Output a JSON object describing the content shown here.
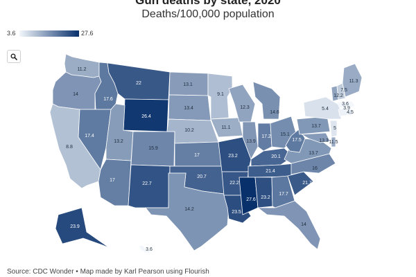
{
  "header": {
    "title": "Gun deaths by state, 2020",
    "subtitle": "Deaths/100,000 population"
  },
  "legend": {
    "min": "3.6",
    "max": "27.6",
    "color_low": "#f3f7fc",
    "color_high": "#08306b"
  },
  "controls": {
    "search_icon": "search-icon"
  },
  "footer": {
    "source": "Source: CDC Wonder • Map made by Karl Pearson using Flourish"
  },
  "chart_data": {
    "type": "map",
    "value_range": [
      3.6,
      27.6
    ],
    "states": [
      {
        "code": "WA",
        "value": 11.2
      },
      {
        "code": "OR",
        "value": 14
      },
      {
        "code": "CA",
        "value": 8.8
      },
      {
        "code": "ID",
        "value": 17.6
      },
      {
        "code": "NV",
        "value": 17.4
      },
      {
        "code": "MT",
        "value": 22
      },
      {
        "code": "WY",
        "value": 26.4
      },
      {
        "code": "UT",
        "value": 13.2
      },
      {
        "code": "AZ",
        "value": 17
      },
      {
        "code": "CO",
        "value": 15.9
      },
      {
        "code": "NM",
        "value": 22.7
      },
      {
        "code": "ND",
        "value": 13.1
      },
      {
        "code": "SD",
        "value": 13.4
      },
      {
        "code": "NE",
        "value": 10.2
      },
      {
        "code": "KS",
        "value": 17
      },
      {
        "code": "OK",
        "value": 20.7
      },
      {
        "code": "TX",
        "value": 14.2
      },
      {
        "code": "MN",
        "value": 9.1
      },
      {
        "code": "IA",
        "value": 11.1
      },
      {
        "code": "MO",
        "value": 23.2
      },
      {
        "code": "AR",
        "value": 22.2
      },
      {
        "code": "LA",
        "value": 23.5
      },
      {
        "code": "WI",
        "value": 12.3
      },
      {
        "code": "IL",
        "value": 13.9
      },
      {
        "code": "MI",
        "value": 14.6
      },
      {
        "code": "IN",
        "value": 17.2
      },
      {
        "code": "OH",
        "value": 15.1
      },
      {
        "code": "KY",
        "value": 20.1
      },
      {
        "code": "TN",
        "value": 21.4
      },
      {
        "code": "MS",
        "value": 27.6
      },
      {
        "code": "AL",
        "value": 23.2
      },
      {
        "code": "GA",
        "value": 17.7
      },
      {
        "code": "FL",
        "value": 14
      },
      {
        "code": "SC",
        "value": 21.7
      },
      {
        "code": "NC",
        "value": 16
      },
      {
        "code": "VA",
        "value": 13.7
      },
      {
        "code": "WV",
        "value": 17.5
      },
      {
        "code": "PA",
        "value": 13.7
      },
      {
        "code": "NY",
        "value": 5.4
      },
      {
        "code": "NJ",
        "value": 5
      },
      {
        "code": "MD",
        "value": 13.3
      },
      {
        "code": "DE",
        "value": 11.5
      },
      {
        "code": "CT",
        "value": 3.9
      },
      {
        "code": "MA",
        "value": 3.6
      },
      {
        "code": "RI",
        "value": 4.5
      },
      {
        "code": "VT",
        "value": 12.2
      },
      {
        "code": "NH",
        "value": 7.5
      },
      {
        "code": "ME",
        "value": 11.3
      },
      {
        "code": "AK",
        "value": 23.9
      },
      {
        "code": "HI",
        "value": 3.6
      }
    ]
  }
}
